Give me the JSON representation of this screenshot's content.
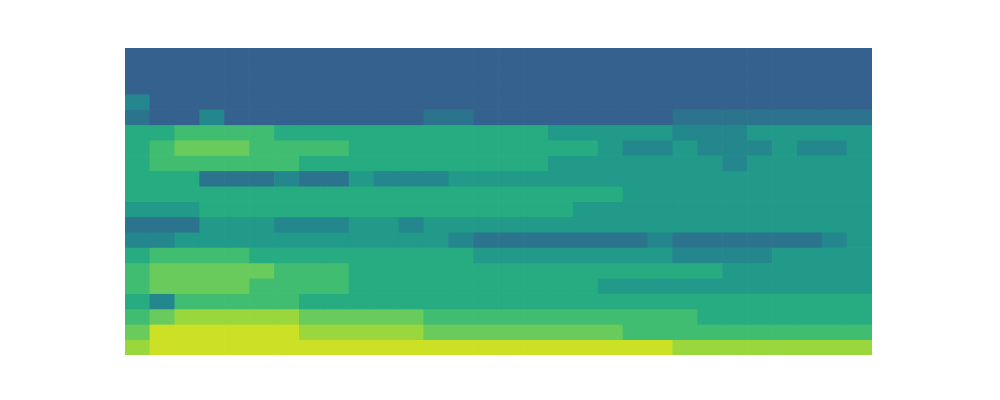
{
  "chart_data": {
    "type": "heatmap",
    "tick_labels": false,
    "grid": false,
    "zlim": [
      -3,
      10
    ],
    "cells": [
      [
        1,
        1,
        1,
        1,
        1,
        1,
        1,
        1,
        1,
        1,
        1,
        1,
        1,
        1,
        1,
        1,
        1,
        1,
        1,
        1,
        1,
        1,
        1,
        1,
        1,
        1,
        1,
        1,
        1,
        1
      ],
      [
        1,
        1,
        1,
        1,
        1,
        1,
        1,
        1,
        1,
        1,
        1,
        1,
        1,
        1,
        1,
        1,
        1,
        1,
        1,
        1,
        1,
        1,
        1,
        1,
        1,
        1,
        1,
        1,
        1,
        1
      ],
      [
        1,
        1,
        1,
        1,
        1,
        1,
        1,
        1,
        1,
        1,
        1,
        1,
        1,
        1,
        1,
        1,
        1,
        1,
        1,
        1,
        1,
        1,
        1,
        1,
        1,
        1,
        1,
        1,
        1,
        1
      ],
      [
        3,
        1,
        1,
        1,
        1,
        1,
        1,
        1,
        1,
        1,
        1,
        1,
        1,
        1,
        1,
        1,
        1,
        1,
        1,
        1,
        1,
        1,
        1,
        1,
        1,
        1,
        1,
        1,
        1,
        1
      ],
      [
        2,
        1,
        1,
        3,
        1,
        1,
        1,
        1,
        1,
        1,
        1,
        1,
        2,
        2,
        1,
        1,
        1,
        1,
        1,
        1,
        1,
        1,
        2,
        2,
        2,
        2,
        2,
        2,
        2,
        2
      ],
      [
        5,
        5,
        6,
        6,
        6,
        6,
        5,
        5,
        5,
        5,
        5,
        5,
        5,
        5,
        5,
        5,
        5,
        4,
        4,
        4,
        4,
        4,
        3,
        3,
        3,
        4,
        4,
        4,
        4,
        4
      ],
      [
        5,
        6,
        7,
        7,
        7,
        6,
        6,
        6,
        6,
        5,
        5,
        5,
        5,
        5,
        5,
        5,
        5,
        5,
        5,
        4,
        3,
        3,
        4,
        3,
        3,
        3,
        4,
        3,
        3,
        4
      ],
      [
        5,
        6,
        6,
        6,
        6,
        6,
        6,
        5,
        5,
        5,
        5,
        5,
        5,
        5,
        5,
        5,
        5,
        4,
        4,
        4,
        4,
        4,
        4,
        4,
        3,
        4,
        4,
        4,
        4,
        4
      ],
      [
        5,
        5,
        5,
        2,
        2,
        2,
        3,
        2,
        2,
        4,
        3,
        3,
        3,
        4,
        4,
        4,
        4,
        4,
        4,
        4,
        4,
        4,
        4,
        4,
        4,
        4,
        4,
        4,
        4,
        4
      ],
      [
        5,
        5,
        5,
        5,
        5,
        5,
        5,
        5,
        5,
        5,
        5,
        5,
        5,
        5,
        5,
        5,
        5,
        5,
        5,
        5,
        4,
        4,
        4,
        4,
        4,
        4,
        4,
        4,
        4,
        4
      ],
      [
        4,
        4,
        4,
        5,
        5,
        5,
        5,
        5,
        5,
        5,
        5,
        5,
        5,
        5,
        5,
        5,
        5,
        5,
        4,
        4,
        4,
        4,
        4,
        4,
        4,
        4,
        4,
        4,
        4,
        4
      ],
      [
        2,
        2,
        2,
        4,
        4,
        4,
        3,
        3,
        3,
        4,
        4,
        3,
        4,
        4,
        4,
        4,
        4,
        4,
        4,
        4,
        4,
        4,
        4,
        4,
        4,
        4,
        4,
        4,
        4,
        4
      ],
      [
        3,
        3,
        4,
        4,
        4,
        4,
        4,
        4,
        4,
        4,
        4,
        4,
        4,
        3,
        2,
        2,
        2,
        2,
        2,
        2,
        2,
        3,
        2,
        2,
        2,
        2,
        2,
        2,
        3,
        4
      ],
      [
        5,
        6,
        6,
        6,
        6,
        5,
        5,
        5,
        5,
        5,
        5,
        5,
        5,
        5,
        4,
        4,
        4,
        4,
        4,
        4,
        4,
        4,
        3,
        3,
        3,
        3,
        4,
        4,
        4,
        4
      ],
      [
        6,
        7,
        7,
        7,
        7,
        7,
        6,
        6,
        6,
        5,
        5,
        5,
        5,
        5,
        5,
        5,
        5,
        5,
        5,
        5,
        5,
        5,
        5,
        5,
        4,
        4,
        4,
        4,
        4,
        4
      ],
      [
        6,
        7,
        7,
        7,
        7,
        6,
        6,
        6,
        6,
        5,
        5,
        5,
        5,
        5,
        5,
        5,
        5,
        5,
        5,
        4,
        4,
        4,
        4,
        4,
        4,
        4,
        4,
        4,
        4,
        4
      ],
      [
        5,
        3,
        6,
        6,
        6,
        6,
        6,
        5,
        5,
        5,
        5,
        5,
        5,
        5,
        5,
        5,
        5,
        5,
        5,
        5,
        5,
        5,
        5,
        5,
        5,
        5,
        5,
        5,
        5,
        5
      ],
      [
        6,
        7,
        8,
        8,
        8,
        8,
        8,
        7,
        7,
        7,
        7,
        7,
        6,
        6,
        6,
        6,
        6,
        6,
        6,
        6,
        6,
        6,
        6,
        5,
        5,
        5,
        5,
        5,
        5,
        5
      ],
      [
        7,
        9,
        9,
        9,
        9,
        9,
        9,
        8,
        8,
        8,
        8,
        8,
        7,
        7,
        7,
        7,
        7,
        7,
        7,
        7,
        6,
        6,
        6,
        6,
        6,
        6,
        6,
        6,
        6,
        6
      ],
      [
        8,
        9,
        9,
        9,
        9,
        9,
        9,
        9,
        9,
        9,
        9,
        9,
        9,
        9,
        9,
        9,
        9,
        9,
        9,
        9,
        9,
        9,
        8,
        8,
        8,
        8,
        8,
        8,
        8,
        8
      ]
    ]
  }
}
